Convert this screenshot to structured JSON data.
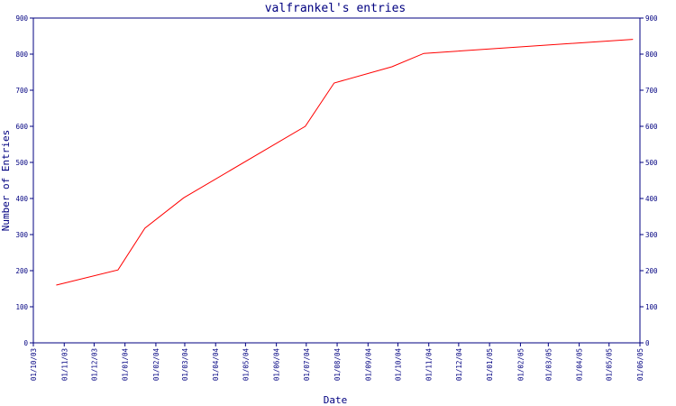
{
  "chart_data": {
    "type": "line",
    "title": "valfrankel's entries",
    "xlabel": "Date",
    "ylabel": "Number of Entries",
    "x_tick_labels": [
      "01/10/03",
      "01/11/03",
      "01/12/03",
      "01/01/04",
      "01/02/04",
      "01/03/04",
      "01/04/04",
      "01/05/04",
      "01/06/04",
      "01/07/04",
      "01/08/04",
      "01/09/04",
      "01/10/04",
      "01/11/04",
      "01/12/04",
      "01/01/05",
      "01/02/05",
      "01/03/05",
      "01/04/05",
      "01/05/05",
      "01/06/05"
    ],
    "y_ticks": [
      0,
      100,
      200,
      300,
      400,
      500,
      600,
      700,
      800,
      900
    ],
    "xlim": [
      "2003-10-01",
      "2005-06-01"
    ],
    "ylim": [
      0,
      900
    ],
    "grid": false,
    "right_axis_mirrors_left": true,
    "colors": {
      "axis": "#000080",
      "series": "#ff0000",
      "background": "#ffffff"
    },
    "series": [
      {
        "x": [
          "2003-10-24",
          "2003-12-25",
          "2004-01-21",
          "2004-02-29",
          "2004-06-30",
          "2004-07-29",
          "2004-09-25",
          "2004-10-27",
          "2005-05-25"
        ],
        "y": [
          160,
          202,
          318,
          402,
          600,
          720,
          765,
          802,
          841
        ]
      }
    ]
  }
}
